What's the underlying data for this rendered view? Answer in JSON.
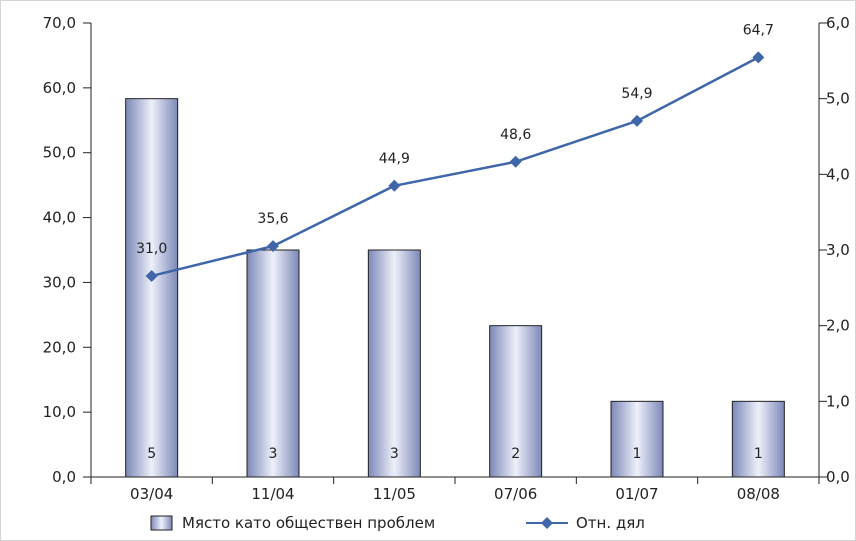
{
  "chart_data": {
    "type": "bar+line",
    "categories": [
      "03/04",
      "11/04",
      "11/05",
      "07/06",
      "01/07",
      "08/08"
    ],
    "series": [
      {
        "name": "Място като обществен проблем",
        "type": "bar",
        "axis": "right",
        "values": [
          5,
          3,
          3,
          2,
          1,
          1
        ],
        "labels": [
          "5",
          "3",
          "3",
          "2",
          "1",
          "1"
        ],
        "color": "#a9b4d8"
      },
      {
        "name": "Отн. дял",
        "type": "line",
        "axis": "left",
        "values": [
          31.0,
          35.6,
          44.9,
          48.6,
          54.9,
          64.7
        ],
        "labels": [
          "31,0",
          "35,6",
          "44,9",
          "48,6",
          "54,9",
          "64,7"
        ],
        "color": "#3e66a8"
      }
    ],
    "y_left": {
      "range": [
        0,
        70
      ],
      "ticks": [
        0,
        10,
        20,
        30,
        40,
        50,
        60,
        70
      ],
      "tick_labels": [
        "0,0",
        "10,0",
        "20,0",
        "30,0",
        "40,0",
        "50,0",
        "60,0",
        "70,0"
      ]
    },
    "y_right": {
      "range": [
        0,
        6
      ],
      "ticks": [
        0,
        1,
        2,
        3,
        4,
        5,
        6
      ],
      "tick_labels": [
        "0,0",
        "1,0",
        "2,0",
        "3,0",
        "4,0",
        "5,0",
        "6,0"
      ]
    },
    "grid": false,
    "legend": "bottom"
  }
}
